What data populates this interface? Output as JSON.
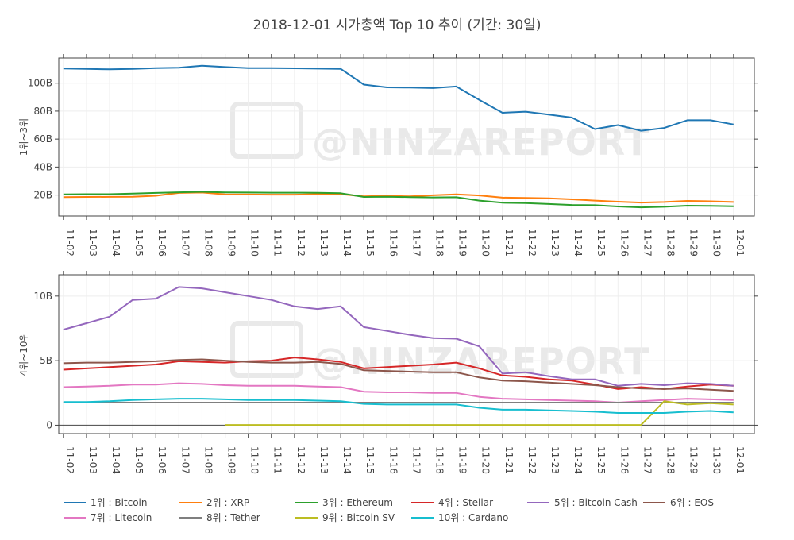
{
  "title": "2018-12-01 시가총액 Top 10 추이 (기간: 30일)",
  "watermark": "@NINZAREPORT",
  "chart_data": [
    {
      "type": "line",
      "ylabel": "1위~3위",
      "ylim": [
        5000000000,
        118000000000
      ],
      "yticks": [
        20000000000,
        40000000000,
        60000000000,
        80000000000,
        100000000000
      ],
      "ytick_labels": [
        "20B",
        "40B",
        "60B",
        "80B",
        "100B"
      ],
      "x_range": [
        -0.2,
        29.9
      ],
      "categories": [
        "11-02",
        "11-03",
        "11-04",
        "11-05",
        "11-06",
        "11-07",
        "11-08",
        "11-09",
        "11-10",
        "11-11",
        "11-12",
        "11-13",
        "11-14",
        "11-15",
        "11-16",
        "11-17",
        "11-18",
        "11-19",
        "11-20",
        "11-21",
        "11-22",
        "11-23",
        "11-24",
        "11-25",
        "11-26",
        "11-27",
        "11-28",
        "11-29",
        "11-30",
        "12-01"
      ],
      "series": [
        {
          "name": "1위 : Bitcoin",
          "color": "#1f77b4",
          "values": [
            110.5,
            110.2,
            109.9,
            110.2,
            110.8,
            111.0,
            112.5,
            111.5,
            110.8,
            110.8,
            110.6,
            110.4,
            110.2,
            99.0,
            97.0,
            96.8,
            96.5,
            97.6,
            88.0,
            78.8,
            79.6,
            77.5,
            75.4,
            67.2,
            70.0,
            66.0,
            68.0,
            73.5,
            73.5,
            70.5
          ]
        },
        {
          "name": "2위 : XRP",
          "color": "#ff7f0e",
          "values": [
            18.5,
            18.6,
            18.7,
            18.8,
            19.5,
            21.5,
            21.8,
            20.5,
            20.4,
            20.3,
            20.3,
            20.7,
            20.6,
            19.0,
            19.5,
            19.0,
            19.8,
            20.5,
            19.7,
            18.1,
            17.9,
            17.6,
            16.9,
            16.0,
            15.2,
            14.6,
            15.0,
            15.8,
            15.5,
            15.0
          ]
        },
        {
          "name": "3위 : Ethereum",
          "color": "#2ca02c",
          "values": [
            20.5,
            20.6,
            20.6,
            21.0,
            21.5,
            22.0,
            22.3,
            21.9,
            21.8,
            21.7,
            21.7,
            21.6,
            21.3,
            18.6,
            18.8,
            18.5,
            18.3,
            18.4,
            16.0,
            14.5,
            14.2,
            13.6,
            12.9,
            12.7,
            11.8,
            11.2,
            11.6,
            12.4,
            12.2,
            12.0
          ]
        }
      ]
    },
    {
      "type": "line",
      "ylabel": "4위~10위",
      "ylim": [
        -650000000,
        11650000000
      ],
      "yticks": [
        0,
        5000000000,
        10000000000
      ],
      "ytick_labels": [
        "0",
        "5B",
        "10B"
      ],
      "x_range": [
        -0.2,
        29.9
      ],
      "categories": [
        "11-02",
        "11-03",
        "11-04",
        "11-05",
        "11-06",
        "11-07",
        "11-08",
        "11-09",
        "11-10",
        "11-11",
        "11-12",
        "11-13",
        "11-14",
        "11-15",
        "11-16",
        "11-17",
        "11-18",
        "11-19",
        "11-20",
        "11-21",
        "11-22",
        "11-23",
        "11-24",
        "11-25",
        "11-26",
        "11-27",
        "11-28",
        "11-29",
        "11-30",
        "12-01"
      ],
      "series": [
        {
          "name": "4위 : Stellar",
          "color": "#d62728",
          "values": [
            4.3,
            4.4,
            4.5,
            4.6,
            4.7,
            4.95,
            4.9,
            4.85,
            4.95,
            5.0,
            5.25,
            5.1,
            4.9,
            4.4,
            4.5,
            4.6,
            4.7,
            4.85,
            4.4,
            3.85,
            3.75,
            3.55,
            3.45,
            3.15,
            2.8,
            2.95,
            2.8,
            3.0,
            3.15,
            3.05
          ]
        },
        {
          "name": "5위 : Bitcoin Cash",
          "color": "#9467bd",
          "values": [
            7.4,
            7.9,
            8.4,
            9.7,
            9.8,
            10.7,
            10.6,
            10.3,
            10.0,
            9.7,
            9.2,
            9.0,
            9.2,
            7.6,
            7.3,
            7.0,
            6.75,
            6.7,
            6.1,
            4.0,
            4.1,
            3.8,
            3.55,
            3.55,
            3.05,
            3.2,
            3.1,
            3.25,
            3.2,
            3.05
          ]
        },
        {
          "name": "6위 : EOS",
          "color": "#8c564b",
          "values": [
            4.8,
            4.85,
            4.85,
            4.9,
            4.95,
            5.05,
            5.1,
            5.0,
            4.9,
            4.85,
            4.85,
            4.9,
            4.75,
            4.25,
            4.2,
            4.15,
            4.1,
            4.1,
            3.7,
            3.45,
            3.4,
            3.3,
            3.2,
            3.1,
            2.95,
            2.85,
            2.8,
            2.85,
            2.75,
            2.65
          ]
        },
        {
          "name": "7위 : Litecoin",
          "color": "#e377c2",
          "values": [
            2.95,
            3.0,
            3.05,
            3.15,
            3.15,
            3.25,
            3.2,
            3.1,
            3.05,
            3.05,
            3.05,
            3.0,
            2.95,
            2.6,
            2.55,
            2.55,
            2.5,
            2.5,
            2.2,
            2.05,
            2.0,
            1.95,
            1.9,
            1.85,
            1.75,
            1.85,
            1.95,
            2.05,
            2.0,
            1.95
          ]
        },
        {
          "name": "8위 : Tether",
          "color": "#7f7f7f",
          "values": [
            1.75,
            1.75,
            1.75,
            1.75,
            1.75,
            1.75,
            1.75,
            1.75,
            1.75,
            1.75,
            1.75,
            1.75,
            1.75,
            1.75,
            1.75,
            1.75,
            1.75,
            1.75,
            1.75,
            1.75,
            1.75,
            1.75,
            1.75,
            1.75,
            1.75,
            1.75,
            1.75,
            1.75,
            1.75,
            1.75
          ]
        },
        {
          "name": "9위 : Bitcoin SV",
          "color": "#bcbd22",
          "values": [
            null,
            null,
            null,
            null,
            null,
            null,
            null,
            0.02,
            0.02,
            0.02,
            0.02,
            0.02,
            0.02,
            0.02,
            0.02,
            0.02,
            0.02,
            0.02,
            0.02,
            0.02,
            0.02,
            0.02,
            0.02,
            0.02,
            0.02,
            0.02,
            1.85,
            1.6,
            1.7,
            1.6
          ]
        },
        {
          "name": "10위 : Cardano",
          "color": "#17becf",
          "values": [
            1.8,
            1.8,
            1.85,
            1.95,
            2.0,
            2.05,
            2.05,
            2.0,
            1.95,
            1.95,
            1.95,
            1.9,
            1.85,
            1.65,
            1.6,
            1.6,
            1.6,
            1.6,
            1.35,
            1.2,
            1.2,
            1.15,
            1.1,
            1.05,
            0.95,
            0.95,
            0.95,
            1.05,
            1.1,
            1.0
          ]
        }
      ]
    }
  ]
}
